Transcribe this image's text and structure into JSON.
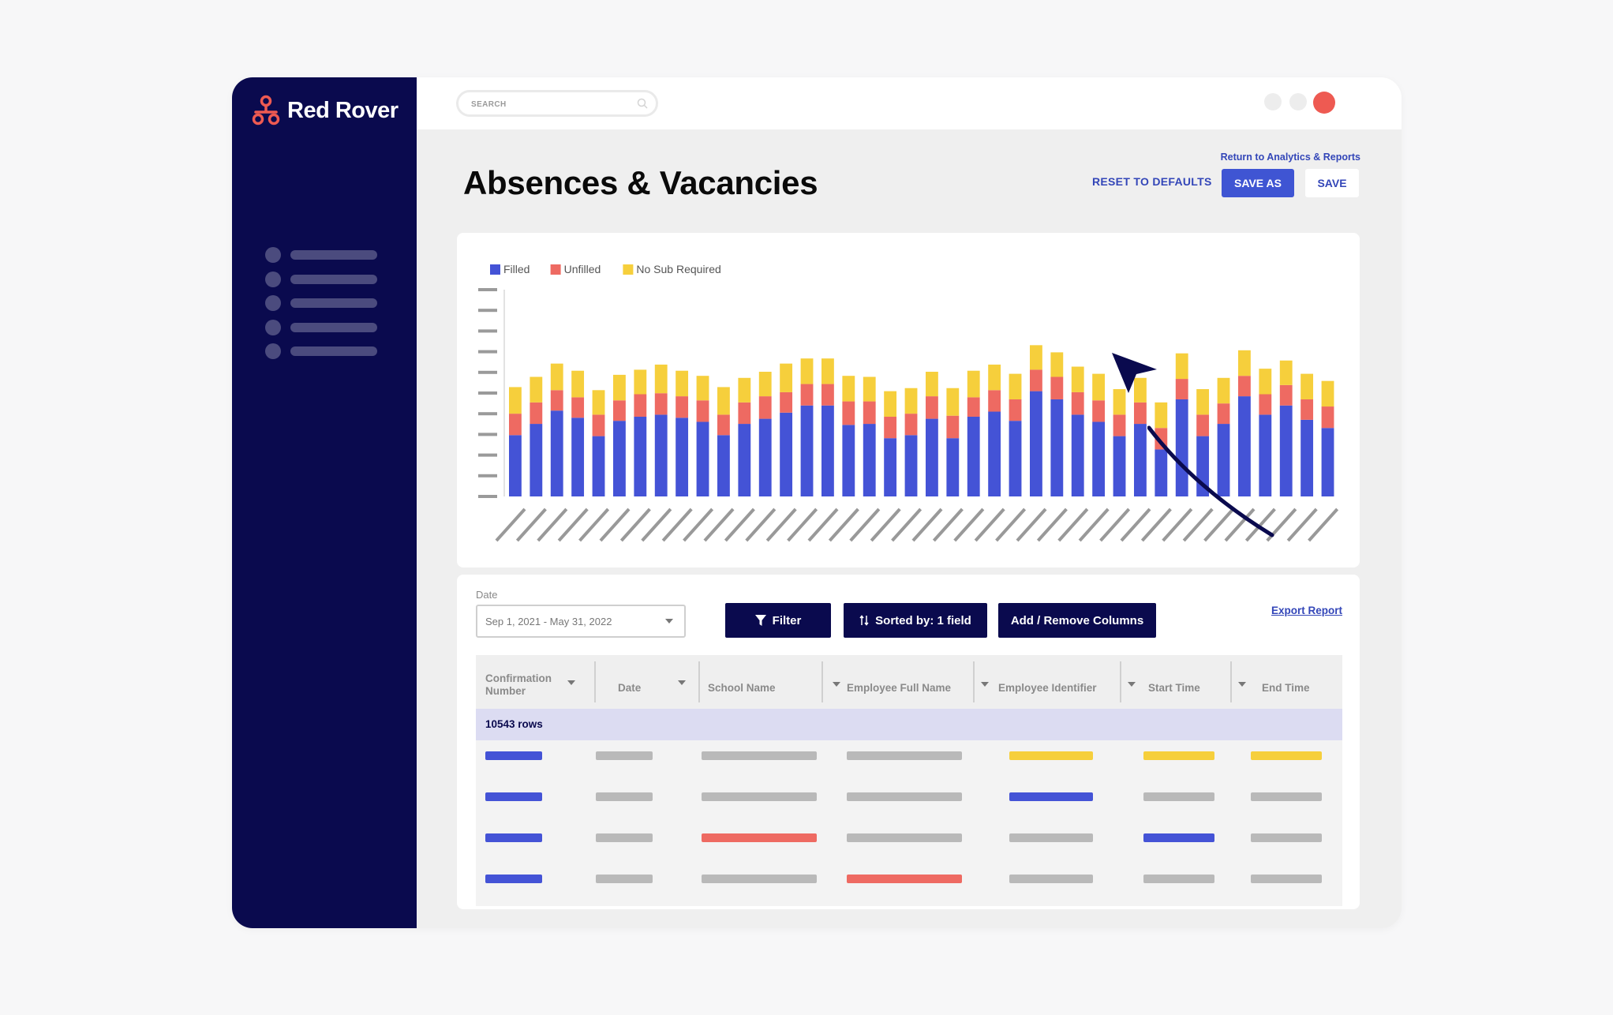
{
  "app": {
    "logo_text": "Red Rover",
    "search_placeholder": "SEARCH"
  },
  "sidebar": {
    "items": [
      {
        "icon": "nav-dot"
      },
      {
        "icon": "nav-dot"
      },
      {
        "icon": "nav-dot"
      },
      {
        "icon": "nav-dot"
      },
      {
        "icon": "nav-dot"
      }
    ]
  },
  "header": {
    "title": "Absences & Vacancies",
    "return_link": "Return to Analytics & Reports",
    "reset_label": "RESET TO DEFAULTS",
    "save_as_label": "SAVE AS",
    "save_label": "SAVE"
  },
  "colors": {
    "filled": "#4453d6",
    "unfilled": "#ee6a62",
    "no_sub": "#f6cf3c",
    "navy": "#0a0a4e",
    "window_red": "#ee5a52",
    "placeholder": "#b9b9b9"
  },
  "chart_data": {
    "type": "bar",
    "stacked": true,
    "legend": [
      "Filled",
      "Unfilled",
      "No Sub Required"
    ],
    "series": [
      {
        "name": "Filled",
        "values": [
          60,
          71,
          84,
          77,
          59,
          74,
          78,
          80,
          77,
          73,
          60,
          71,
          76,
          82,
          89,
          89,
          70,
          71,
          57,
          60,
          76,
          57,
          78,
          83,
          74,
          103,
          95,
          80,
          73,
          59,
          71,
          46,
          95,
          59,
          71,
          98,
          80,
          89,
          75,
          67
        ]
      },
      {
        "name": "Unfilled",
        "values": [
          21,
          21,
          20,
          20,
          21,
          20,
          22,
          21,
          21,
          21,
          20,
          21,
          22,
          20,
          21,
          21,
          23,
          22,
          21,
          21,
          22,
          22,
          19,
          21,
          21,
          21,
          22,
          22,
          21,
          21,
          21,
          21,
          20,
          21,
          20,
          20,
          20,
          20,
          20,
          21
        ]
      },
      {
        "name": "No Sub Required",
        "values": [
          26,
          25,
          26,
          26,
          24,
          25,
          24,
          28,
          25,
          24,
          27,
          24,
          24,
          28,
          25,
          25,
          25,
          24,
          25,
          25,
          24,
          27,
          26,
          25,
          25,
          24,
          24,
          25,
          26,
          25,
          24,
          25,
          25,
          25,
          25,
          25,
          25,
          24,
          25,
          25
        ]
      }
    ],
    "ylim": [
      0,
      200
    ],
    "grid": false,
    "legend_position": "top-left"
  },
  "filters": {
    "date_label": "Date",
    "date_value": "Sep 1, 2021 - May 31, 2022",
    "filter_label": "Filter",
    "sorted_label": "Sorted by: 1 field",
    "columns_label": "Add / Remove Columns",
    "export_label": "Export Report"
  },
  "table": {
    "columns": [
      "Confirmation Number",
      "Date",
      "School Name",
      "Employee Full Name",
      "Employee Identifier",
      "Start Time",
      "End Time"
    ],
    "rows_count": "10543 rows",
    "rows": [
      [
        "blue",
        "gray",
        "gray",
        "gray",
        "yellow",
        "yellow",
        "yellow"
      ],
      [
        "blue",
        "gray",
        "gray",
        "gray",
        "blue",
        "gray",
        "gray"
      ],
      [
        "blue",
        "gray",
        "red",
        "gray",
        "gray",
        "blue",
        "gray"
      ],
      [
        "blue",
        "gray",
        "gray",
        "red",
        "gray",
        "gray",
        "gray"
      ]
    ]
  }
}
